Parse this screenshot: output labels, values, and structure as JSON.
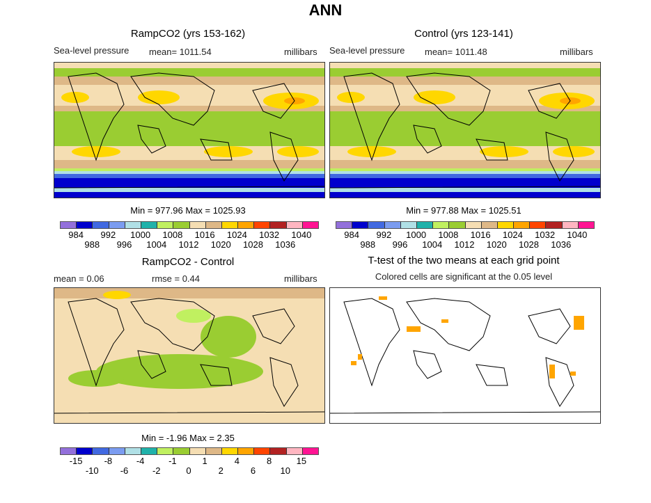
{
  "title": "ANN",
  "panels": {
    "ramp": {
      "title": "RampCO2 (yrs 153-162)",
      "variable": "Sea-level pressure",
      "mean": "mean= 1011.54",
      "units": "millibars",
      "minmax": "Min = 977.96 Max = 1025.93"
    },
    "control": {
      "title": "Control (yrs 123-141)",
      "variable": "Sea-level pressure",
      "mean": "mean= 1011.48",
      "units": "millibars",
      "minmax": "Min = 977.88 Max = 1025.51"
    },
    "diff": {
      "title": "RampCO2 - Control",
      "mean": "mean =    0.06",
      "rmse": "rmse =    0.44",
      "units": "millibars",
      "minmax": "Min =   -1.96 Max =    2.35"
    },
    "ttest": {
      "title": "T-test of the two means at each grid point",
      "subtitle": "Colored cells are significant at the 0.05 level"
    }
  },
  "colorbar_colors": [
    "#9370db",
    "#0000cd",
    "#4169e1",
    "#7b9cf0",
    "#b0e0e6",
    "#20b2aa",
    "#c0f060",
    "#9acd32",
    "#f5deb3",
    "#deb887",
    "#ffd700",
    "#ffa500",
    "#ff4500",
    "#b22222",
    "#ffb6c1",
    "#ff1493"
  ],
  "levels_abs": [
    "984",
    "988",
    "992",
    "996",
    "1000",
    "1004",
    "1008",
    "1012",
    "1016",
    "1020",
    "1024",
    "1028",
    "1032",
    "1036",
    "1040"
  ],
  "levels_diff": [
    "-15",
    "-10",
    "-8",
    "-6",
    "-4",
    "-2",
    "-1",
    "0",
    "1",
    "2",
    "4",
    "6",
    "8",
    "10",
    "15"
  ],
  "significance_color": "#ffa500"
}
